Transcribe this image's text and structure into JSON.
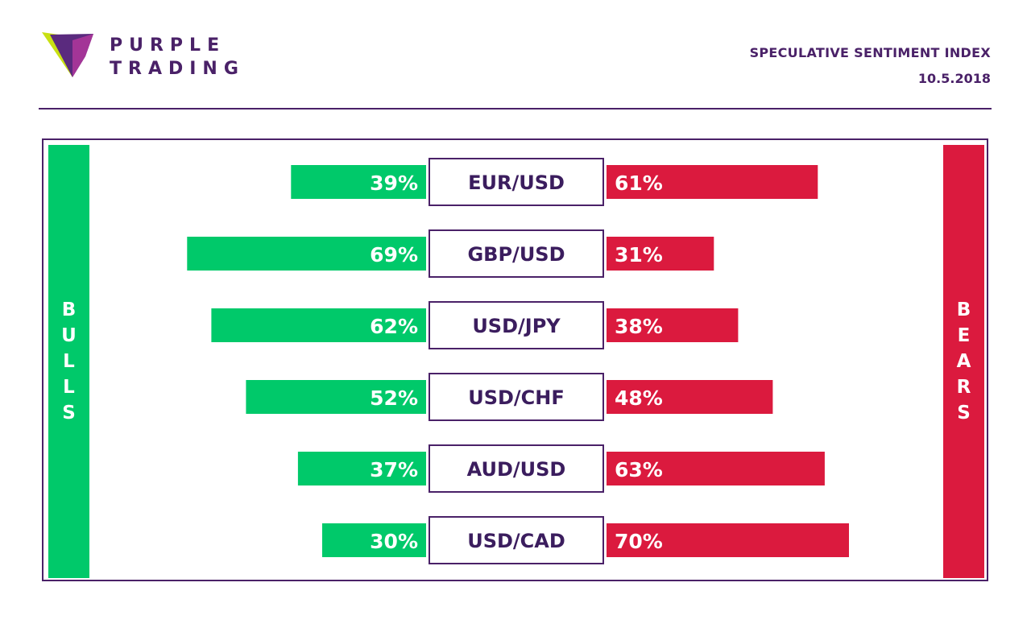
{
  "brand": {
    "line1": "PURPLE",
    "line2": "TRADING",
    "colors": {
      "purple": "#4a2168",
      "lime": "#c8e012",
      "magenta": "#b0379b"
    },
    "icon": "purple-trading-logo-icon"
  },
  "header": {
    "title": "SPECULATIVE SENTIMENT INDEX",
    "date": "10.5.2018"
  },
  "labels": {
    "bulls": "BULLS",
    "bears": "BEARS"
  },
  "colors": {
    "bull": "#00c96a",
    "bear": "#db1a3e",
    "accent": "#4a2168"
  },
  "chart_data": {
    "type": "bar",
    "orientation": "horizontal-diverging",
    "categories": [
      "EUR/USD",
      "GBP/USD",
      "USD/JPY",
      "USD/CHF",
      "AUD/USD",
      "USD/CAD"
    ],
    "series": [
      {
        "name": "BULLS",
        "values": [
          39,
          69,
          62,
          52,
          37,
          30
        ],
        "labels": [
          "39%",
          "69%",
          "62%",
          "52%",
          "37%",
          "30%"
        ]
      },
      {
        "name": "BEARS",
        "values": [
          61,
          31,
          38,
          48,
          63,
          70
        ],
        "labels": [
          "61%",
          "31%",
          "38%",
          "48%",
          "63%",
          "70%"
        ]
      }
    ],
    "unit": "%",
    "grid": false
  }
}
